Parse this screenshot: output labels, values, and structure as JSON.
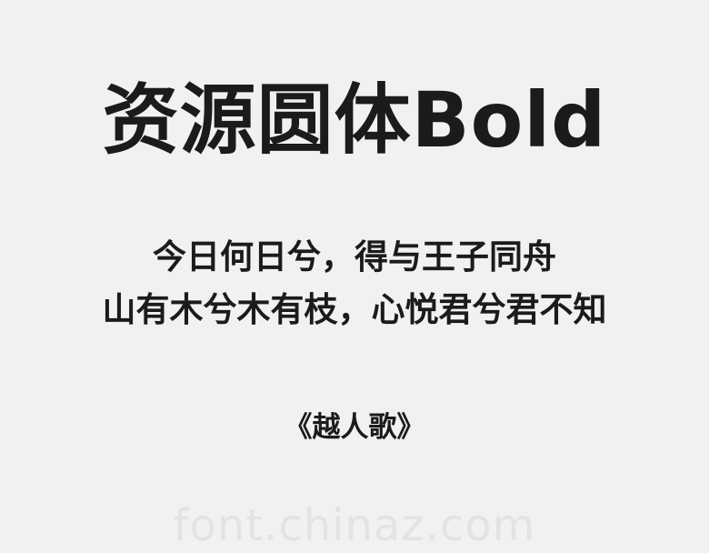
{
  "title": "资源圆体Bold",
  "poem": {
    "lines": [
      "今日何日兮，得与王子同舟",
      "山有木兮木有枝，心悦君兮君不知"
    ]
  },
  "source": "《越人歌》",
  "watermark": "font.chinaz.com"
}
